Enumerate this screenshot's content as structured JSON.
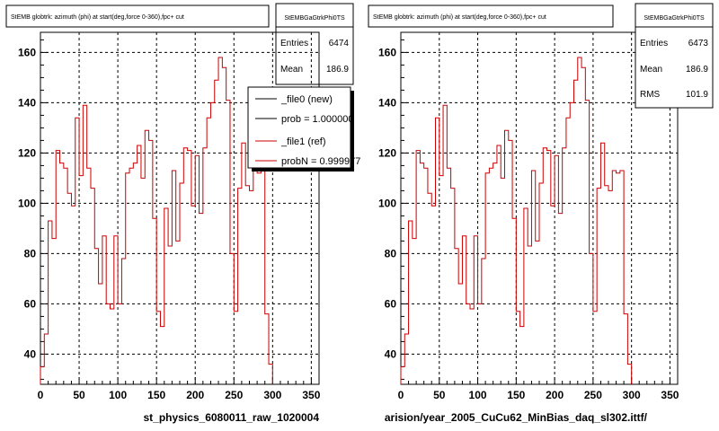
{
  "panels": [
    {
      "title": "StEMB globtrk: azimuth (phi) at start(deg,force 0-360),fpc+ cut",
      "stats_name": "StEMBGaGtrkPhi0TS",
      "stats": [
        {
          "label": "Entries",
          "value": "6474"
        },
        {
          "label": "Mean",
          "value": "186.9"
        }
      ],
      "xtitle": "st_physics_6080011_raw_1020004",
      "legend": [
        {
          "label": "_file0 (new)",
          "color": "#000000"
        },
        {
          "label": "prob = 1.000000",
          "color": "#000000"
        },
        {
          "label": "_file1 (ref)",
          "color": "#cc0000"
        },
        {
          "label": "probN = 0.999977",
          "color": "#cc0000"
        }
      ]
    },
    {
      "title": "StEMB globtrk: azimuth (phi) at start(deg,force 0-360),fpc+ cut",
      "stats_name": "StEMBGaGtrkPhi0TS",
      "stats": [
        {
          "label": "Entries",
          "value": "6473"
        },
        {
          "label": "Mean",
          "value": "186.9"
        },
        {
          "label": "RMS",
          "value": "101.9"
        }
      ],
      "xtitle": "arision/year_2005_CuCu62_MinBias_daq_sl302.ittf/",
      "legend": []
    }
  ],
  "colors": {
    "hist": "#cc0000"
  },
  "chart_data": [
    {
      "type": "step",
      "xlim": [
        0,
        360
      ],
      "ylim": [
        28,
        168
      ],
      "xticks": [
        0,
        50,
        100,
        150,
        200,
        250,
        300,
        350
      ],
      "yticks": [
        40,
        60,
        80,
        100,
        120,
        140,
        160
      ],
      "grid": true,
      "bin_width": 5,
      "values": [
        35,
        48,
        93,
        86,
        121,
        116,
        114,
        104,
        99,
        134,
        111,
        139,
        114,
        106,
        82,
        68,
        87,
        60,
        58,
        87,
        60,
        78,
        112,
        114,
        116,
        123,
        110,
        129,
        125,
        94,
        57,
        51,
        98,
        83,
        113,
        85,
        108,
        122,
        121,
        99,
        119,
        96,
        122,
        134,
        140,
        149,
        158,
        154,
        141,
        80,
        57,
        106,
        124,
        107,
        105,
        113,
        112,
        113,
        56,
        36
      ],
      "series": [
        {
          "name": "_file0 (new)",
          "color": "#000000"
        },
        {
          "name": "_file1 (ref)",
          "color": "#cc0000"
        }
      ]
    },
    {
      "type": "step",
      "xlim": [
        0,
        360
      ],
      "ylim": [
        28,
        168
      ],
      "xticks": [
        0,
        50,
        100,
        150,
        200,
        250,
        300,
        350
      ],
      "yticks": [
        40,
        60,
        80,
        100,
        120,
        140,
        160
      ],
      "grid": true,
      "bin_width": 5,
      "values": [
        35,
        48,
        93,
        86,
        121,
        116,
        114,
        104,
        99,
        134,
        111,
        139,
        114,
        106,
        82,
        68,
        87,
        60,
        58,
        87,
        60,
        78,
        112,
        114,
        116,
        123,
        110,
        129,
        125,
        94,
        57,
        51,
        98,
        83,
        113,
        85,
        108,
        122,
        121,
        99,
        119,
        96,
        122,
        134,
        140,
        149,
        158,
        154,
        141,
        80,
        57,
        106,
        124,
        107,
        105,
        113,
        112,
        113,
        56,
        36
      ],
      "series": [
        {
          "name": "_file1 (ref)",
          "color": "#cc0000"
        }
      ]
    }
  ]
}
